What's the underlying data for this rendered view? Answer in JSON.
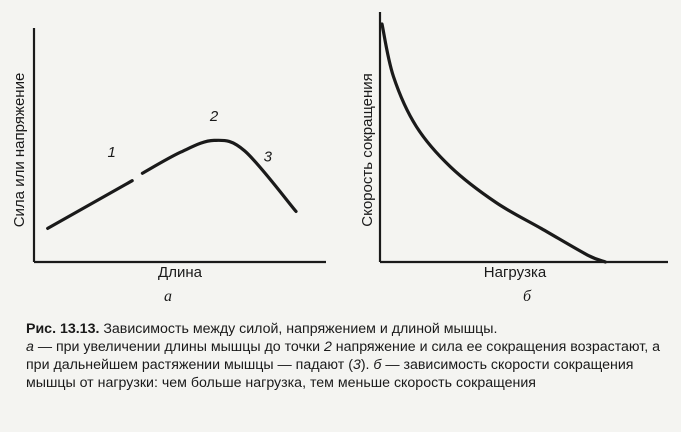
{
  "chart_data": [
    {
      "id": "a",
      "type": "line",
      "xlabel": "Длина",
      "ylabel": "Сила или напряжение",
      "sublabel": "а",
      "series": [
        {
          "values": [
            [
              0.03,
              0.1
            ],
            [
              0.36,
              0.55
            ]
          ]
        },
        {
          "values": [
            [
              0.4,
              0.62
            ],
            [
              0.55,
              0.82
            ],
            [
              0.68,
              0.93
            ],
            [
              0.8,
              0.83
            ],
            [
              1.0,
              0.26
            ]
          ]
        }
      ],
      "annotations": [
        {
          "text": "1",
          "x": 0.28,
          "y": 0.66
        },
        {
          "text": "2",
          "x": 0.68,
          "y": 1.0
        },
        {
          "text": "3",
          "x": 0.89,
          "y": 0.62
        }
      ]
    },
    {
      "id": "b",
      "type": "line",
      "xlabel": "Нагрузка",
      "ylabel": "Скорость сокращения",
      "sublabel": "б",
      "series": [
        {
          "values": [
            [
              0.0,
              1.0
            ],
            [
              0.05,
              0.78
            ],
            [
              0.15,
              0.57
            ],
            [
              0.3,
              0.4
            ],
            [
              0.5,
              0.25
            ],
            [
              0.7,
              0.14
            ],
            [
              0.9,
              0.03
            ],
            [
              0.98,
              0.0
            ]
          ]
        }
      ]
    }
  ],
  "caption": {
    "fig_no": "Рис. 13.13.",
    "p1": " Зависимость между силой, напряжением и длиной мышцы.",
    "a": "а",
    "p2": " — при увеличении длины мышцы до точки ",
    "n2": "2",
    "p3": " напряжение и сила ее сокращения возрастают, а при дальнейшем растяжении мышцы — падают (",
    "n3": "3",
    "p4": "). ",
    "b": "б",
    "p5": " — зависимость скорости сокращения мышцы от нагрузки: чем больше нагрузка, тем меньше скорость сокращения"
  }
}
